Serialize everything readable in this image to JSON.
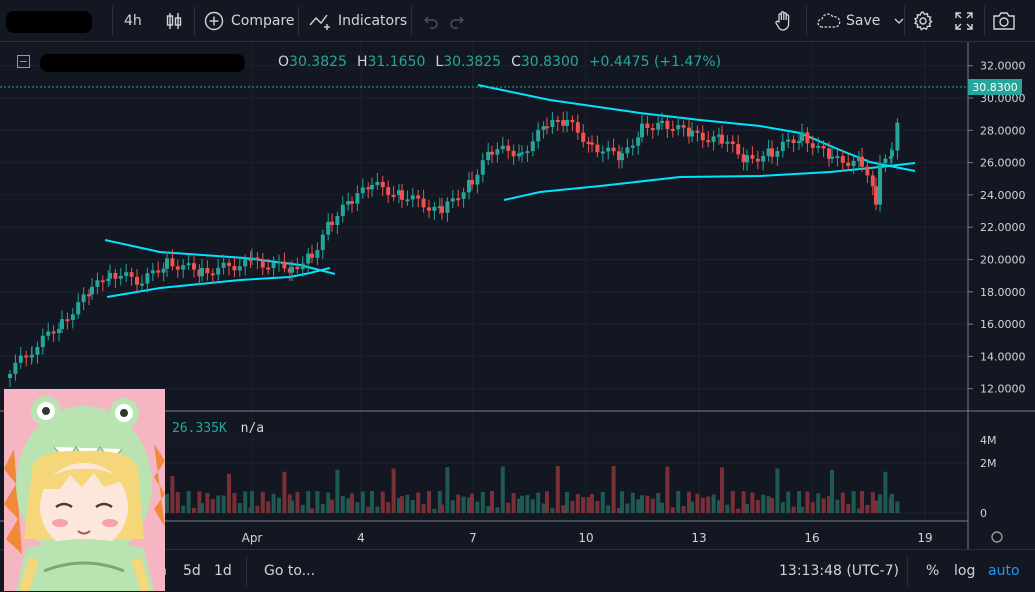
{
  "toolbar": {
    "interval": "4h",
    "compare": "Compare",
    "indicators": "Indicators",
    "save": "Save"
  },
  "legend": {
    "o_key": "O",
    "o": "30.3825",
    "h_key": "H",
    "h": "31.1650",
    "l_key": "L",
    "l": "30.3825",
    "c_key": "C",
    "c": "30.8300",
    "change": "+0.4475 (+1.47%)"
  },
  "price_axis": {
    "ticks": [
      "32.0000",
      "30.0000",
      "28.0000",
      "26.0000",
      "24.0000",
      "22.0000",
      "20.0000",
      "18.0000",
      "16.0000",
      "14.0000",
      "12.0000"
    ],
    "last_price": "30.8300"
  },
  "volume_axis": {
    "ticks": [
      "4M",
      "2M",
      "0"
    ]
  },
  "volume_label": {
    "value": "26.335K",
    "extra": "n/a"
  },
  "time_axis": {
    "ticks": [
      "Apr",
      "4",
      "7",
      "10",
      "13",
      "16",
      "19"
    ]
  },
  "bottombar": {
    "ranges": [
      "5d",
      "1d"
    ],
    "range_partial": "n",
    "goto": "Go to...",
    "clock": "13:13:48 (UTC-7)",
    "percent": "%",
    "log": "log",
    "auto": "auto"
  },
  "colors": {
    "up": "#26a69a",
    "down": "#ef5350",
    "trendline": "#00e5ff",
    "background": "#131722",
    "accent": "#2196f3"
  },
  "icons": [
    "bars-icon",
    "plus-circle-icon",
    "indicators-icon",
    "undo-icon",
    "redo-icon",
    "hand-icon",
    "cloud-icon",
    "chevron-down-icon",
    "gear-icon",
    "fullscreen-icon",
    "camera-icon"
  ]
}
